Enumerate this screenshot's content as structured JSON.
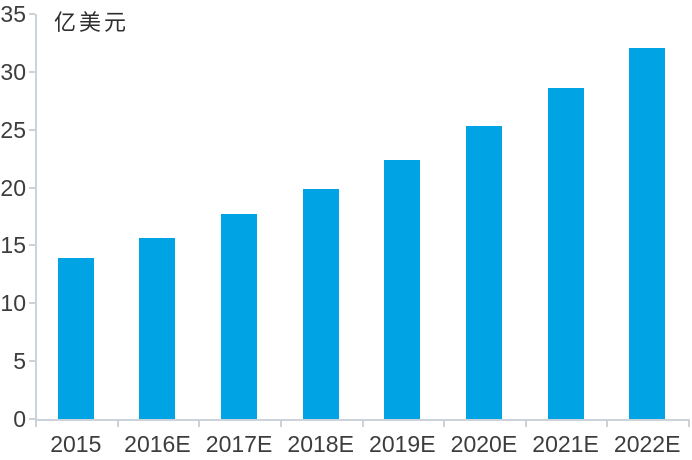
{
  "chart_data": {
    "type": "bar",
    "title": "",
    "ylabel": "亿美元",
    "xlabel": "",
    "categories": [
      "2015",
      "2016E",
      "2017E",
      "2018E",
      "2019E",
      "2020E",
      "2021E",
      "2022E"
    ],
    "values": [
      13.9,
      15.6,
      17.7,
      19.9,
      22.4,
      25.3,
      28.6,
      32.1
    ],
    "ylim": [
      0,
      35
    ],
    "ytick_step": 5,
    "ytick_labels": [
      "0",
      "5",
      "10",
      "15",
      "20",
      "25",
      "30",
      "35"
    ],
    "grid": false,
    "legend": "none",
    "bar_color": "#00a3e4",
    "axis_color": "#ccd2d9",
    "tick_label_color": "#3d3d3d"
  }
}
